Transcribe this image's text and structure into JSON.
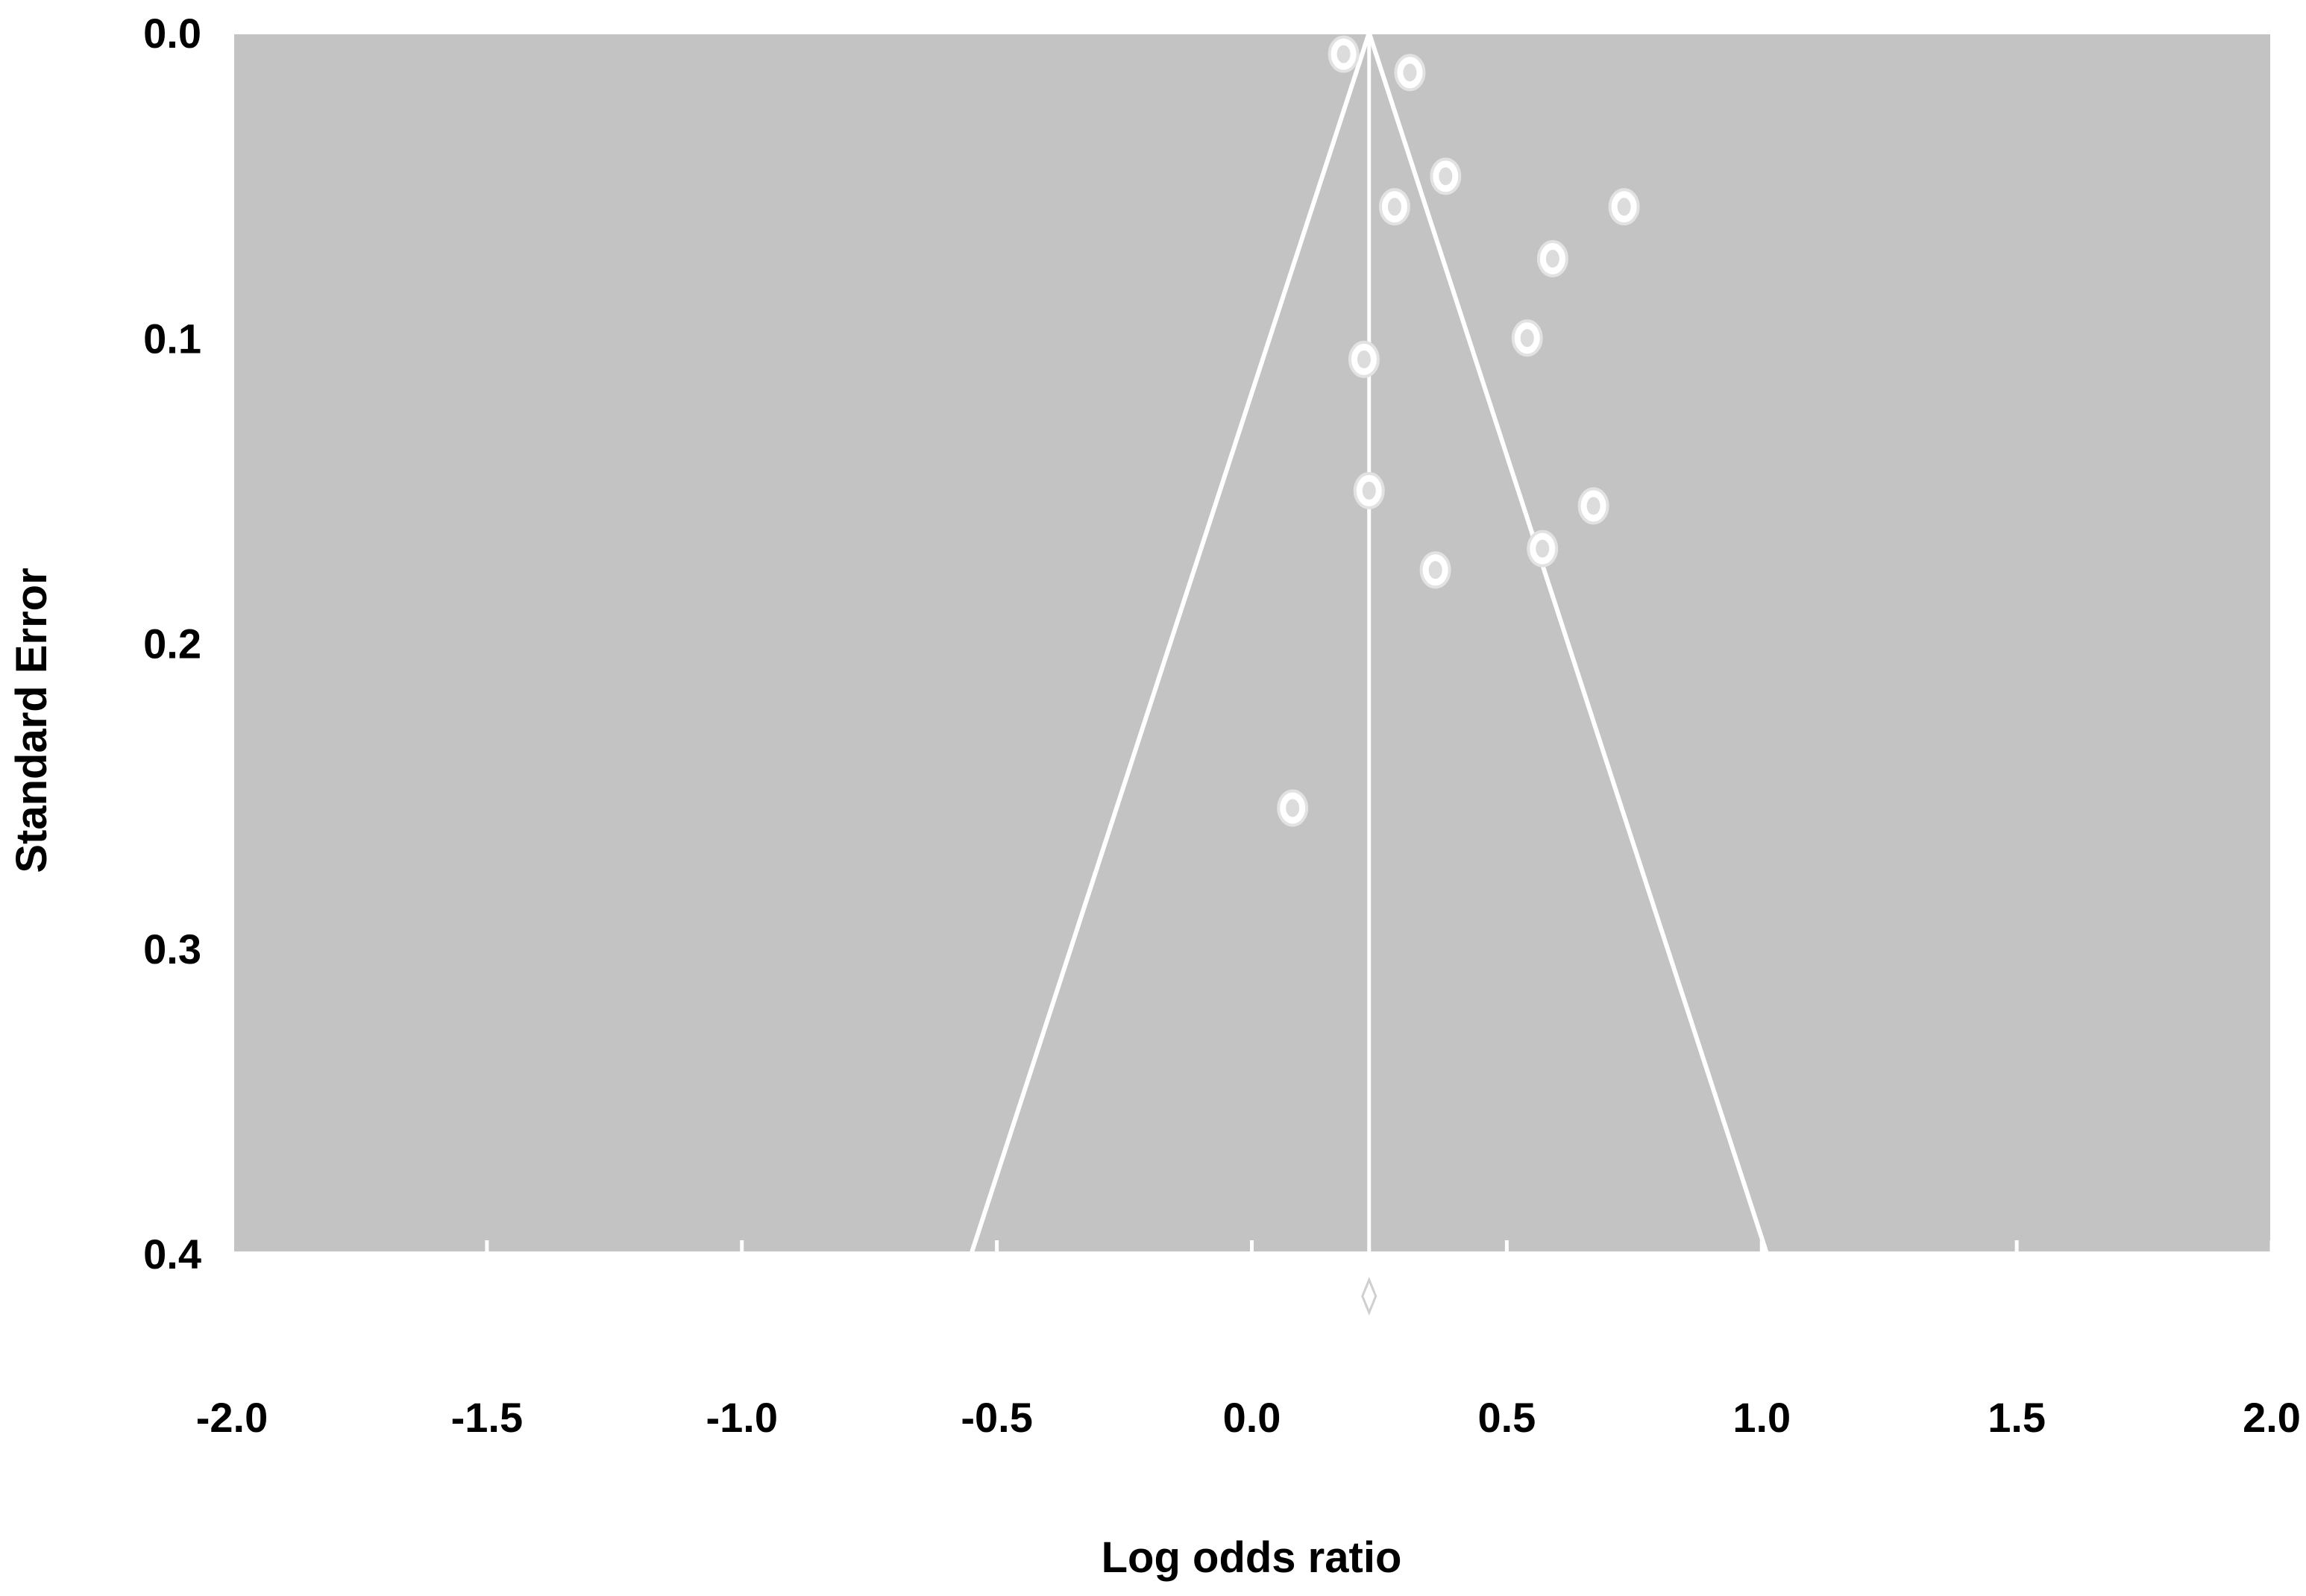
{
  "chart_data": {
    "type": "scatter",
    "subtype": "funnel plot",
    "title": "",
    "xlabel": "Log odds ratio",
    "ylabel": "Standard Error",
    "xlim": [
      -2.0,
      2.0
    ],
    "ylim": [
      0.0,
      0.4
    ],
    "y_inverted": true,
    "x_ticks": [
      "-2.0",
      "-1.5",
      "-1.0",
      "-0.5",
      "0.0",
      "0.5",
      "1.0",
      "1.5",
      "2.0"
    ],
    "y_ticks": [
      "0.0",
      "0.1",
      "0.2",
      "0.3",
      "0.4"
    ],
    "pooled_estimate": 0.23,
    "funnel_limits": {
      "apex": [
        0.23,
        0.0
      ],
      "base_left": [
        -0.55,
        0.4
      ],
      "base_right": [
        1.01,
        0.4
      ]
    },
    "points": [
      {
        "x": 0.18,
        "y": 0.007
      },
      {
        "x": 0.31,
        "y": 0.013
      },
      {
        "x": 0.38,
        "y": 0.047
      },
      {
        "x": 0.28,
        "y": 0.057
      },
      {
        "x": 0.73,
        "y": 0.057
      },
      {
        "x": 0.59,
        "y": 0.074
      },
      {
        "x": 0.54,
        "y": 0.1
      },
      {
        "x": 0.22,
        "y": 0.107
      },
      {
        "x": 0.23,
        "y": 0.15
      },
      {
        "x": 0.67,
        "y": 0.155
      },
      {
        "x": 0.57,
        "y": 0.169
      },
      {
        "x": 0.36,
        "y": 0.176
      },
      {
        "x": 0.08,
        "y": 0.254
      }
    ],
    "grid": false,
    "legend": "none",
    "colors": {
      "plot_background": "#c3c3c3",
      "lines": "#ffffff",
      "markers": "#ffffff",
      "text": "#000000"
    }
  }
}
